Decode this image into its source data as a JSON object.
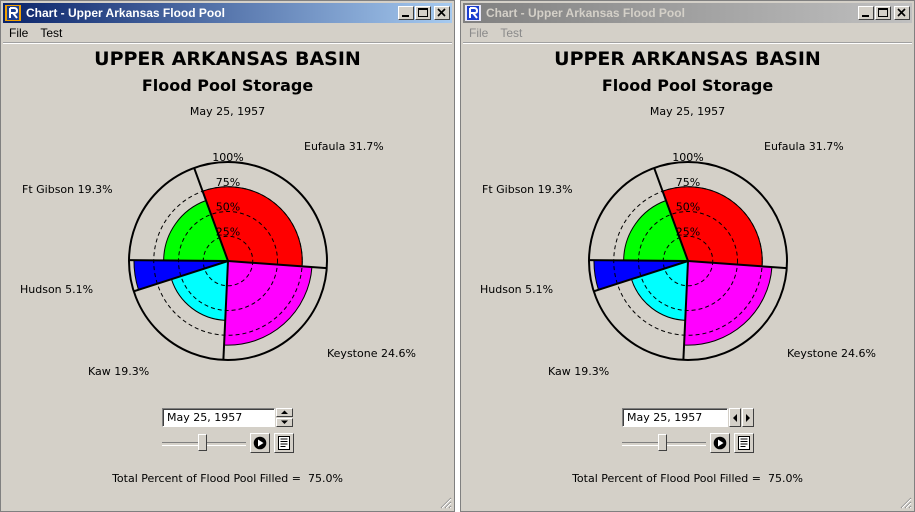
{
  "windows": [
    {
      "id": "left",
      "title": "Chart - Upper Arkansas Flood Pool",
      "active": true,
      "menu": [
        "File",
        "Test"
      ],
      "date_field_value": "May 25, 1957",
      "stepper": "spinner"
    },
    {
      "id": "right",
      "title": "Chart - Upper Arkansas Flood Pool",
      "active": false,
      "menu": [
        "File",
        "Test"
      ],
      "date_field_value": "May 25, 1957",
      "stepper": "arrows"
    }
  ],
  "chart_data": {
    "type": "polar-area",
    "title": "UPPER ARKANSAS BASIN",
    "subtitle": "Flood Pool Storage",
    "date": "May 25, 1957",
    "rings": [
      "25%",
      "50%",
      "75%",
      "100%"
    ],
    "slices": [
      {
        "name": "Eufaula",
        "share_label": "31.7%",
        "share": 31.7,
        "fill_percent": 75,
        "color": "#ff0000"
      },
      {
        "name": "Keystone",
        "share_label": "24.6%",
        "share": 24.6,
        "fill_percent": 85,
        "color": "#ff00ff"
      },
      {
        "name": "Kaw",
        "share_label": "19.3%",
        "share": 19.3,
        "fill_percent": 60,
        "color": "#00ffff"
      },
      {
        "name": "Hudson",
        "share_label": "5.1%",
        "share": 5.1,
        "fill_percent": 95,
        "color": "#0000ff"
      },
      {
        "name": "Ft Gibson",
        "share_label": "19.3%",
        "share": 19.3,
        "fill_percent": 65,
        "color": "#00ff00"
      }
    ]
  },
  "footer": {
    "total_label": "Total Percent of Flood Pool Filled =",
    "total_value": "75.0%"
  },
  "slider_position_fraction": 0.47
}
